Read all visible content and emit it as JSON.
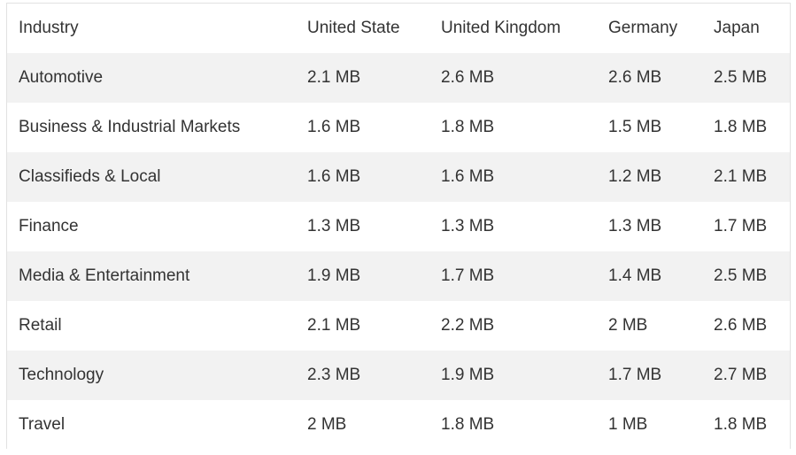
{
  "table": {
    "headers": [
      "Industry",
      "United State",
      "United Kingdom",
      "Germany",
      "Japan"
    ],
    "rows": [
      [
        "Automotive",
        "2.1 MB",
        "2.6 MB",
        "2.6 MB",
        "2.5 MB"
      ],
      [
        "Business & Industrial Markets",
        "1.6 MB",
        "1.8 MB",
        "1.5 MB",
        "1.8 MB"
      ],
      [
        "Classifieds & Local",
        "1.6 MB",
        "1.6 MB",
        "1.2 MB",
        "2.1 MB"
      ],
      [
        "Finance",
        "1.3 MB",
        "1.3 MB",
        "1.3 MB",
        "1.7 MB"
      ],
      [
        "Media & Entertainment",
        "1.9 MB",
        "1.7 MB",
        "1.4 MB",
        "2.5 MB"
      ],
      [
        "Retail",
        "2.1 MB",
        "2.2 MB",
        "2 MB",
        "2.6 MB"
      ],
      [
        "Technology",
        "2.3 MB",
        "1.9 MB",
        "1.7 MB",
        "2.7 MB"
      ],
      [
        "Travel",
        "2 MB",
        "1.8 MB",
        "1 MB",
        "1.8 MB"
      ]
    ]
  },
  "colors": {
    "stripe": "#f2f2f2",
    "text": "#333333",
    "border": "#e2e2e2"
  }
}
